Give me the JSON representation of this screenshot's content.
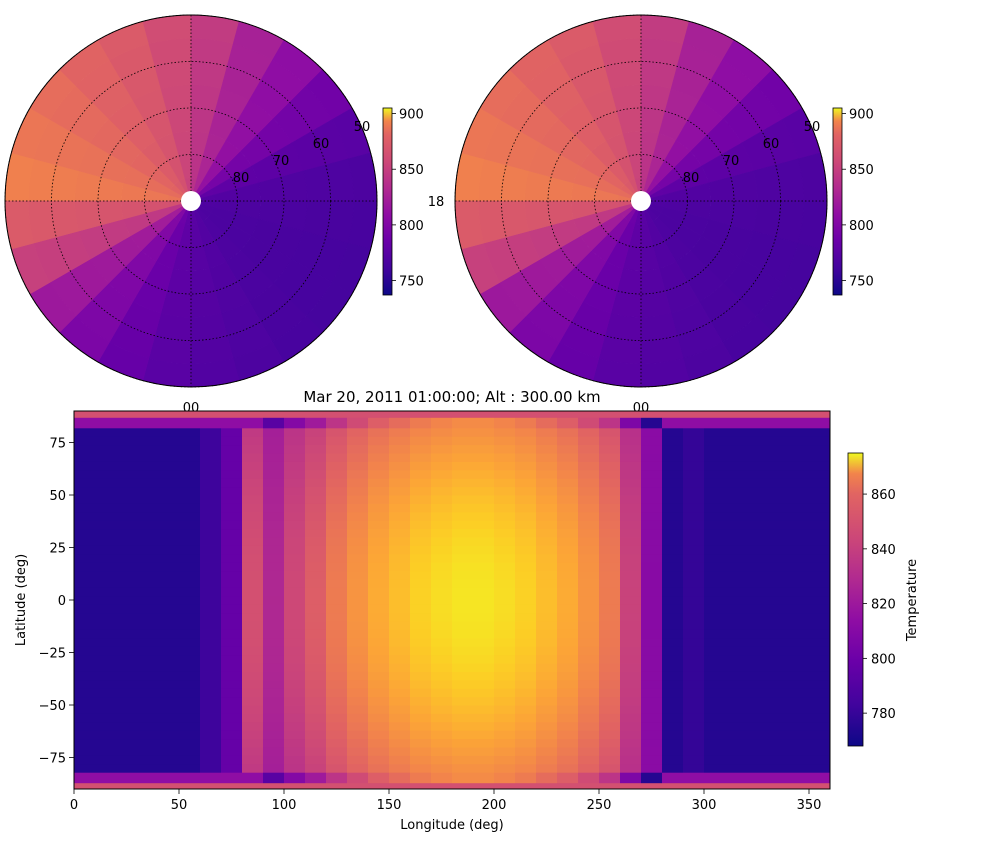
{
  "figure": {
    "title": "Mar 20, 2011 01:00:00; Alt : 300.00 km"
  },
  "chart_data": [
    {
      "type": "heatmap",
      "projection": "polar-north",
      "title": "",
      "lat_rings": [
        80,
        70,
        60,
        50
      ],
      "lat_ring_labels": [
        "80",
        "70",
        "60",
        "50"
      ],
      "side_labels": {
        "bottom": "00",
        "right": "18"
      },
      "colorbar": {
        "ticks": [
          750,
          800,
          850,
          900
        ],
        "tick_labels": [
          "750",
          "800",
          "850",
          "900"
        ],
        "range": [
          737,
          905
        ]
      },
      "colormap": "plasma",
      "sector_values": [
        850,
        845,
        840,
        835,
        830,
        822,
        812,
        800,
        788,
        775,
        765,
        760,
        758,
        757,
        757,
        758,
        760,
        762,
        765,
        770,
        780,
        795,
        815,
        830
      ]
    },
    {
      "type": "heatmap",
      "projection": "polar-north",
      "title": "",
      "lat_rings": [
        80,
        70,
        60,
        50
      ],
      "lat_ring_labels": [
        "80",
        "70",
        "60",
        "50"
      ],
      "side_labels": {
        "bottom": "00"
      },
      "colorbar": {
        "ticks": [
          750,
          800,
          850,
          900
        ],
        "tick_labels": [
          "750",
          "800",
          "850",
          "900"
        ],
        "range": [
          737,
          905
        ]
      },
      "colormap": "plasma",
      "sector_values": [
        850,
        845,
        840,
        835,
        830,
        822,
        812,
        800,
        788,
        775,
        765,
        760,
        758,
        757,
        757,
        758,
        760,
        762,
        765,
        770,
        780,
        795,
        815,
        830
      ]
    },
    {
      "type": "heatmap",
      "title": "Mar 20, 2011 01:00:00; Alt : 300.00 km",
      "xlabel": "Longitude (deg)",
      "ylabel": "Latitude (deg)",
      "xlim": [
        0,
        360
      ],
      "ylim": [
        -90,
        90
      ],
      "xticks": [
        0,
        50,
        100,
        150,
        200,
        250,
        300,
        350
      ],
      "xtick_labels": [
        "0",
        "50",
        "100",
        "150",
        "200",
        "250",
        "300",
        "350"
      ],
      "yticks": [
        -75,
        -50,
        -25,
        0,
        25,
        50,
        75
      ],
      "ytick_labels": [
        "−75",
        "−50",
        "−25",
        "0",
        "25",
        "50",
        "75"
      ],
      "colorbar": {
        "label": "Temperature",
        "ticks": [
          780,
          800,
          820,
          840,
          860
        ],
        "tick_labels": [
          "780",
          "800",
          "820",
          "840",
          "860"
        ],
        "range": [
          768,
          875
        ]
      },
      "colormap": "plasma",
      "lon_step": 10,
      "lat_edges": [
        -90,
        -87,
        -82,
        -78,
        -74,
        -70,
        -66,
        -62,
        -58,
        -54,
        -50,
        -46,
        -42,
        -38,
        -34,
        -30,
        -26,
        -22,
        -18,
        -14,
        -10,
        -6,
        -2,
        2,
        6,
        10,
        14,
        18,
        22,
        26,
        30,
        34,
        38,
        42,
        46,
        50,
        54,
        58,
        62,
        66,
        70,
        74,
        78,
        82,
        87,
        90
      ],
      "lon_profile": [
        773,
        773,
        773,
        773,
        773,
        773,
        778,
        788,
        825,
        810,
        822,
        830,
        840,
        848,
        855,
        860,
        865,
        868,
        870,
        870,
        868,
        865,
        860,
        855,
        848,
        840,
        820,
        798,
        773,
        776,
        773,
        773,
        773,
        773,
        773,
        773
      ],
      "lon_is_night": [
        true,
        true,
        true,
        true,
        true,
        true,
        true,
        true,
        false,
        false,
        false,
        false,
        false,
        false,
        false,
        false,
        false,
        false,
        false,
        false,
        false,
        false,
        false,
        false,
        false,
        false,
        false,
        false,
        true,
        true,
        true,
        true,
        true,
        true,
        true,
        true
      ],
      "polar_edge_values": {
        "outer": 825,
        "inner": 805
      }
    }
  ]
}
